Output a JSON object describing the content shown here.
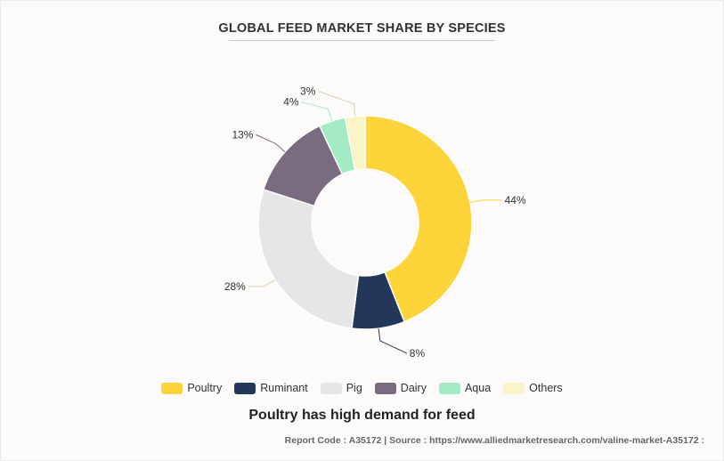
{
  "chart_data": {
    "type": "pie",
    "title": "GLOBAL FEED MARKET SHARE BY SPECIES",
    "donut": true,
    "legend_position": "bottom",
    "slices": [
      {
        "label": "Poultry",
        "value": 44,
        "display": "44%",
        "color": "#fdd43a"
      },
      {
        "label": "Ruminant",
        "value": 8,
        "display": "8%",
        "color": "#23375a"
      },
      {
        "label": "Pig",
        "value": 28,
        "display": "28%",
        "color": "#e6e6e6"
      },
      {
        "label": "Dairy",
        "value": 13,
        "display": "13%",
        "color": "#7b6b81"
      },
      {
        "label": "Aqua",
        "value": 4,
        "display": "4%",
        "color": "#a3ebc2"
      },
      {
        "label": "Others",
        "value": 3,
        "display": "3%",
        "color": "#fbf4c7"
      }
    ]
  },
  "caption": "Poultry has high demand for feed",
  "footer": "Report Code : A35172  |  Source : https://www.alliedmarketresearch.com/valine-market-A35172 :"
}
